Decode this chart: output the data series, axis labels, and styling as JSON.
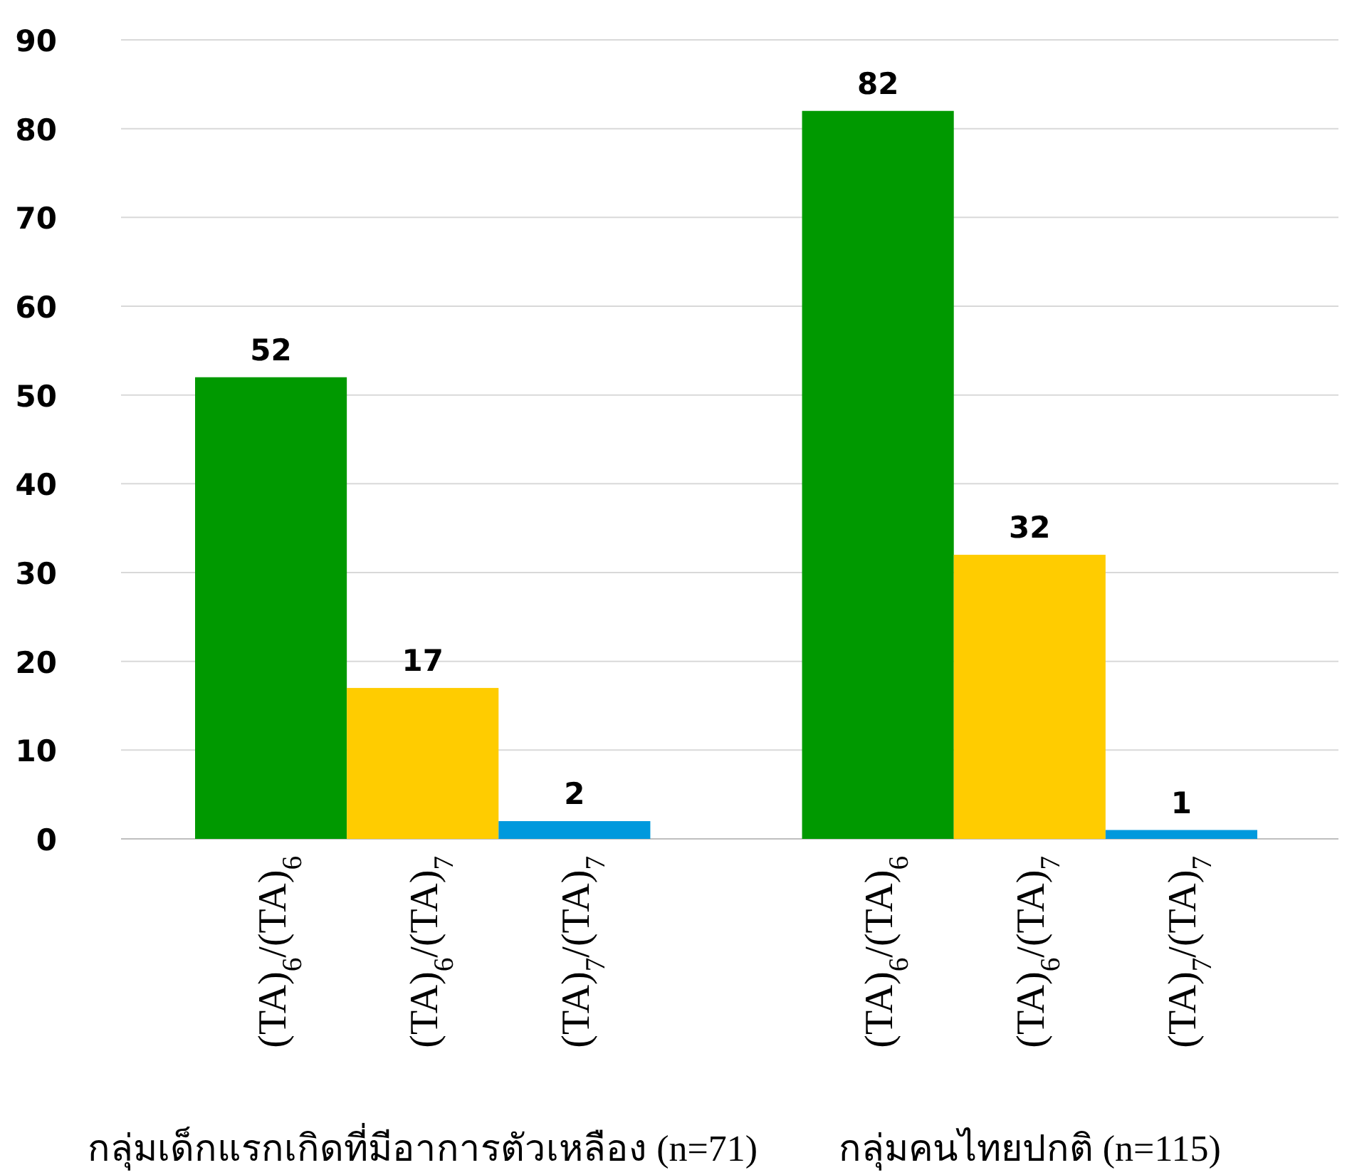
{
  "chart_data": {
    "type": "bar",
    "categories": [
      "(TA)$_{6}$/(TA)$_{6}$",
      "(TA)$_{6}$/(TA)$_{7}$",
      "(TA)$_{7}$/(TA)$_{7}$",
      null,
      "(TA)$_{6}$/(TA)$_{6}$",
      "(TA)$_{6}$/(TA)$_{7}$",
      "(TA)$_{7}$/(TA)$_{7}$"
    ],
    "values": [
      52,
      17,
      2,
      null,
      82,
      32,
      1
    ],
    "colors": [
      "#009900",
      "#ffcc00",
      "#0099dd",
      null,
      "#009900",
      "#ffcc00",
      "#0099dd"
    ],
    "annotations": [
      "กลุ่มเด็กแรกเกิดที่มีอาการตัวเหลือง (n=71)",
      "กลุ่มคนไทยปกติ  (n=115)"
    ],
    "ylim": [
      0,
      90
    ],
    "yticks": [
      0,
      10,
      20,
      30,
      40,
      50,
      60,
      70,
      80,
      90
    ],
    "grid": "y",
    "data_labels": true
  }
}
